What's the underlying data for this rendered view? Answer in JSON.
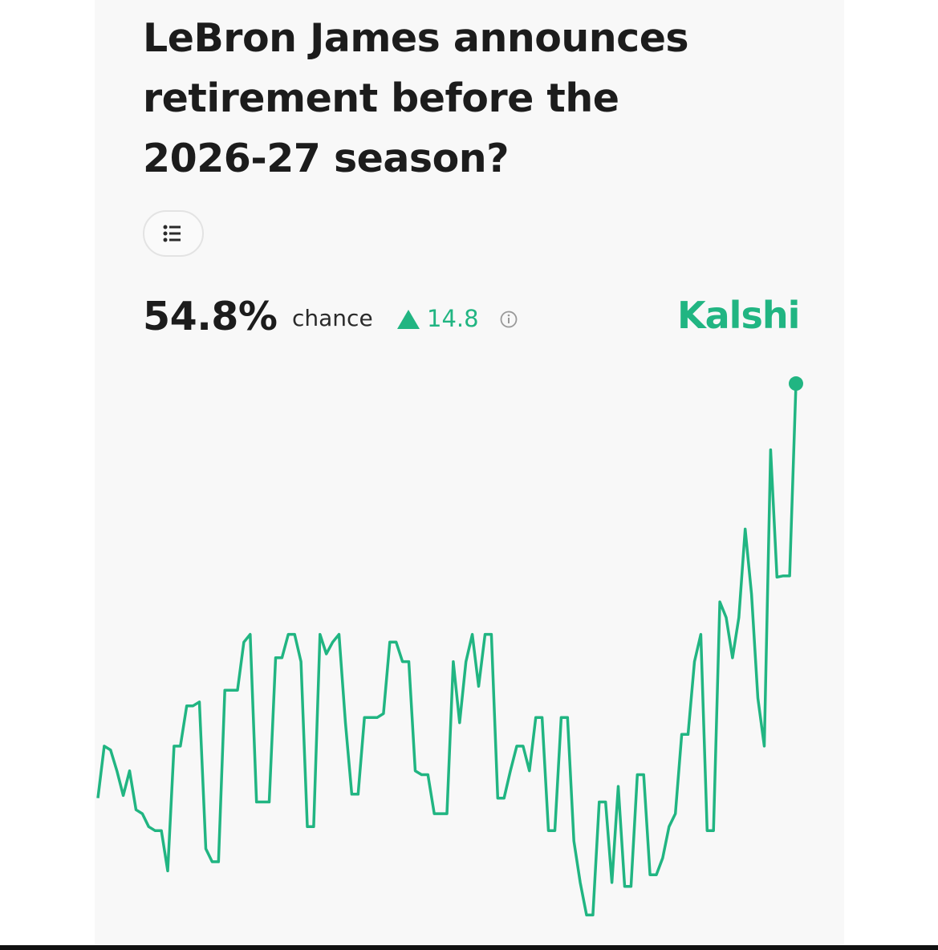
{
  "header": {
    "title": "LeBron James announces retirement before the 2026-27 season?"
  },
  "summary": {
    "chance": "54.8%",
    "chance_word": "chance",
    "change": "14.8",
    "brand": "Kalshi"
  },
  "chart_data": {
    "type": "line",
    "color": "#21b582",
    "ylim": [
      13,
      55
    ],
    "values": [
      22.9,
      26.9,
      26.6,
      25,
      23.1,
      25,
      22,
      21.7,
      20.7,
      20.4,
      20.4,
      17.3,
      26.9,
      26.9,
      30,
      30,
      30.3,
      19,
      18,
      18,
      31.2,
      31.2,
      31.2,
      34.9,
      35.5,
      22.6,
      22.6,
      22.6,
      33.7,
      33.7,
      35.5,
      35.5,
      33.4,
      20.7,
      20.7,
      35.5,
      34,
      34.9,
      35.5,
      28.7,
      23.2,
      23.2,
      29.1,
      29.1,
      29.1,
      29.4,
      34.9,
      34.9,
      33.4,
      33.4,
      25,
      24.7,
      24.7,
      21.7,
      21.7,
      21.7,
      33.4,
      28.7,
      33.4,
      35.5,
      31.5,
      35.5,
      35.5,
      22.9,
      22.9,
      25,
      26.9,
      26.9,
      25,
      29.1,
      29.1,
      20.4,
      20.4,
      29.1,
      29.1,
      19.6,
      16.4,
      13.9,
      13.9,
      22.6,
      22.6,
      16.4,
      23.8,
      16.1,
      16.1,
      24.7,
      24.7,
      17,
      17,
      18.3,
      20.7,
      21.7,
      27.8,
      27.8,
      33.4,
      35.5,
      20.4,
      20.4,
      38,
      36.8,
      33.7,
      36.8,
      43.6,
      38.6,
      30.6,
      26.9,
      49.7,
      39.9,
      40,
      40,
      54.8
    ]
  }
}
